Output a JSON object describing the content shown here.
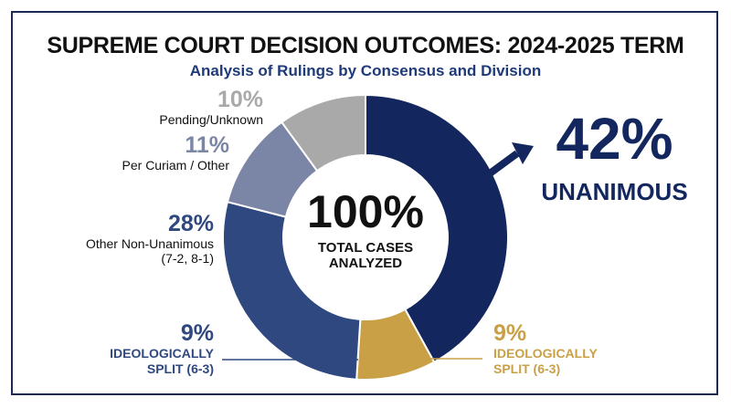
{
  "title": "SUPREME COURT DECISION OUTCOMES: 2024-2025 TERM",
  "subtitle": "Analysis of Rulings by Consensus and Division",
  "center": {
    "value": "100%",
    "caption_line1": "TOTAL CASES",
    "caption_line2": "ANALYZED"
  },
  "callouts": {
    "unanimous": {
      "pct": "42%",
      "label": "UNANIMOUS"
    },
    "split_gold": {
      "pct": "9%",
      "line1": "IDEOLOGICALLY",
      "line2": "SPLIT (6-3)"
    },
    "split_navy": {
      "pct": "9%",
      "line1": "IDEOLOGICALLY",
      "line2": "SPLIT (6-3)"
    },
    "other": {
      "pct": "28%",
      "line1": "Other Non-Unanimous",
      "line2": "(7-2, 8-1)"
    },
    "per_curiam": {
      "pct": "11%",
      "line1": "Per Curiam / Other"
    },
    "pending": {
      "pct": "10%",
      "line1": "Pending/Unknown"
    }
  },
  "chart_data": {
    "type": "pie",
    "donut": true,
    "title": "SUPREME COURT DECISION OUTCOMES: 2024-2025 TERM",
    "subtitle": "Analysis of Rulings by Consensus and Division",
    "slices": [
      {
        "label": "UNANIMOUS",
        "value": 42,
        "color": "#13275e"
      },
      {
        "label": "IDEOLOGICALLY SPLIT (6-3)",
        "value": 9,
        "color": "#c9a046"
      },
      {
        "label": "Other Non-Unanimous (7-2, 8-1)",
        "value": 28,
        "color": "#2f4880"
      },
      {
        "label": "Per Curiam / Other",
        "value": 11,
        "color": "#7b86a6"
      },
      {
        "label": "Pending/Unknown",
        "value": 10,
        "color": "#a9a9a9"
      }
    ]
  },
  "colors": {
    "navy": "#13275e",
    "gold": "#c9a046",
    "mid_navy": "#2f4880",
    "slate": "#7b86a6",
    "gray": "#a9a9a9",
    "frame": "#1b2a55"
  }
}
